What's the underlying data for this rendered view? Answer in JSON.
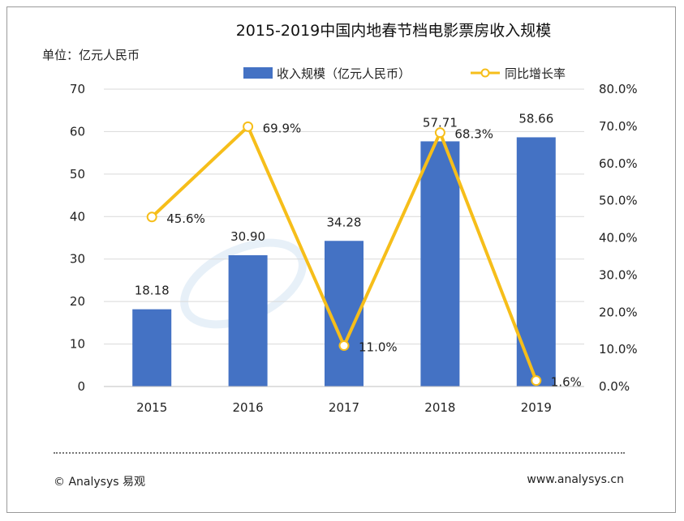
{
  "chart_data": {
    "type": "bar",
    "title": "2015-2019中国内地春节档电影票房收入规模",
    "unit_label": "单位：亿元人民币",
    "categories": [
      "2015",
      "2016",
      "2017",
      "2018",
      "2019"
    ],
    "series": [
      {
        "name": "收入规模（亿元人民币）",
        "type": "bar",
        "axis": "left",
        "values": [
          18.18,
          30.9,
          34.28,
          57.71,
          58.66
        ],
        "labels": [
          "18.18",
          "30.90",
          "34.28",
          "57.71",
          "58.66"
        ],
        "color": "#4472C4"
      },
      {
        "name": "同比增长率",
        "type": "line",
        "axis": "right",
        "values": [
          45.6,
          69.9,
          11.0,
          68.3,
          1.6
        ],
        "labels": [
          "45.6%",
          "69.9%",
          "11.0%",
          "68.3%",
          "1.6%"
        ],
        "color": "#F6BE1A"
      }
    ],
    "y_left": {
      "min": 0,
      "max": 70,
      "step": 10,
      "ticks": [
        "0",
        "10",
        "20",
        "30",
        "40",
        "50",
        "60",
        "70"
      ]
    },
    "y_right": {
      "min": 0,
      "max": 80,
      "step": 10,
      "ticks": [
        "0.0%",
        "10.0%",
        "20.0%",
        "30.0%",
        "40.0%",
        "50.0%",
        "60.0%",
        "70.0%",
        "80.0%"
      ]
    },
    "grid": true,
    "legend_position": "top-center"
  },
  "footer": {
    "copyright": "© Analysys 易观",
    "website": "www.analysys.cn"
  }
}
